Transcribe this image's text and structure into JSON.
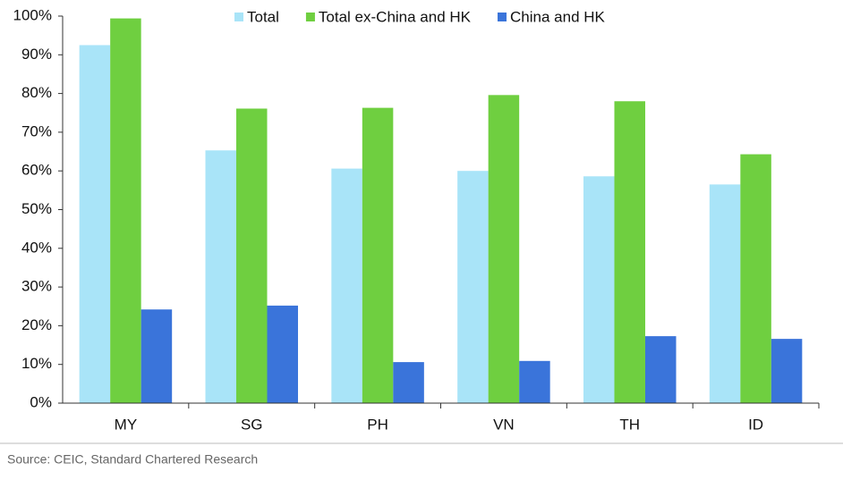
{
  "chart_data": {
    "type": "bar",
    "categories": [
      "MY",
      "SG",
      "PH",
      "VN",
      "TH",
      "ID"
    ],
    "series": [
      {
        "name": "Total",
        "color": "#a9e4f8",
        "values": [
          92.5,
          65.3,
          60.6,
          60,
          58.6,
          56.5
        ]
      },
      {
        "name": "Total ex-China and HK",
        "color": "#6fcf40",
        "values": [
          99.4,
          76.1,
          76.3,
          79.6,
          78,
          64.3
        ]
      },
      {
        "name": "China and HK",
        "color": "#3a74da",
        "values": [
          24.2,
          25.2,
          10.6,
          10.9,
          17.3,
          16.6
        ]
      }
    ],
    "ylim": [
      0,
      100
    ],
    "yticks": [
      {
        "value": 0,
        "label": "0%"
      },
      {
        "value": 10,
        "label": "10%"
      },
      {
        "value": 20,
        "label": "20%"
      },
      {
        "value": 30,
        "label": "30%"
      },
      {
        "value": 40,
        "label": "40%"
      },
      {
        "value": 50,
        "label": "50%"
      },
      {
        "value": 60,
        "label": "60%"
      },
      {
        "value": 70,
        "label": "70%"
      },
      {
        "value": 80,
        "label": "80%"
      },
      {
        "value": 90,
        "label": "90%"
      },
      {
        "value": 100,
        "label": "100%"
      }
    ],
    "legend": "top",
    "source": "Source: CEIC, Standard Chartered Research"
  }
}
